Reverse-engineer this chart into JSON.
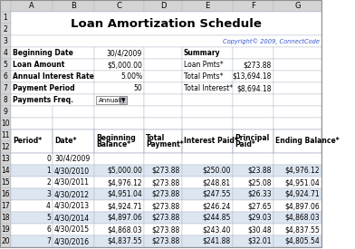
{
  "title": "Loan Amortization Schedule",
  "copyright": "Copyright© 2009, ConnectCode",
  "info_labels": [
    "Beginning Date",
    "Loan Amount",
    "Annual Interest Rate",
    "Payment Period",
    "Payments Freq."
  ],
  "info_values": [
    "30/4/2009",
    "$5,000.00",
    "5.00%",
    "50",
    "Annually"
  ],
  "summary_labels": [
    "Summary",
    "Loan Pmts*",
    "Total Pmts*",
    "Total Interest*"
  ],
  "summary_values": [
    "",
    "$273.88",
    "$13,694.18",
    "$8,694.18"
  ],
  "col_headers": [
    "Period*",
    "Date*",
    "Beginning\nBalance*",
    "Total\nPayment*",
    "Interest Paid*",
    "Principal\nPaid*",
    "Ending Balance*"
  ],
  "excel_cols": [
    "A",
    "B",
    "C",
    "D",
    "E",
    "F",
    "G"
  ],
  "table_data": [
    [
      "0",
      "30/4/2009",
      "",
      "",
      "",
      "",
      ""
    ],
    [
      "1",
      "4/30/2010",
      "$5,000.00",
      "$273.88",
      "$250.00",
      "$23.88",
      "$4,976.12"
    ],
    [
      "2",
      "4/30/2011",
      "$4,976.12",
      "$273.88",
      "$248.81",
      "$25.08",
      "$4,951.04"
    ],
    [
      "3",
      "4/30/2012",
      "$4,951.04",
      "$273.88",
      "$247.55",
      "$26.33",
      "$4,924.71"
    ],
    [
      "4",
      "4/30/2013",
      "$4,924.71",
      "$273.88",
      "$246.24",
      "$27.65",
      "$4,897.06"
    ],
    [
      "5",
      "4/30/2014",
      "$4,897.06",
      "$273.88",
      "$244.85",
      "$29.03",
      "$4,868.03"
    ],
    [
      "6",
      "4/30/2015",
      "$4,868.03",
      "$273.88",
      "$243.40",
      "$30.48",
      "$4,837.55"
    ],
    [
      "7",
      "4/30/2016",
      "$4,837.55",
      "$273.88",
      "$241.88",
      "$32.01",
      "$4,805.54"
    ]
  ],
  "white": "#ffffff",
  "light_blue": "#dce6f1",
  "header_gray": "#d4d4d4",
  "grid_color": "#b0b8c8",
  "copyright_color": "#3355cc",
  "row_alt_colors": [
    "#ffffff",
    "#dce6f1",
    "#ffffff",
    "#dce6f1",
    "#ffffff",
    "#dce6f1",
    "#ffffff",
    "#dce6f1"
  ]
}
